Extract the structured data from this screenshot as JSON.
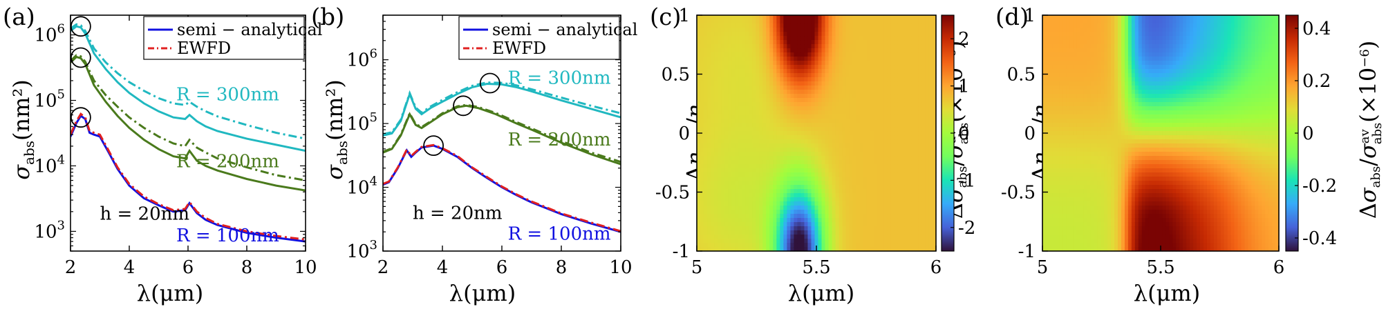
{
  "chart_data": [
    {
      "type": "line",
      "panel": "(a)",
      "xlabel": "λ(μm)",
      "ylabel_main": "σ",
      "ylabel_sub": "abs",
      "ylabel_unit": "(nm²)",
      "xlim": [
        2,
        10
      ],
      "ylim": [
        500,
        2000000
      ],
      "yscale": "log",
      "xticks": [
        2,
        4,
        6,
        8,
        10
      ],
      "xtick_labels": [
        "2",
        "4",
        "6",
        "8",
        "10"
      ],
      "ytick_labels": [
        {
          "base": "10",
          "exp": "3",
          "value": 1000
        },
        {
          "base": "10",
          "exp": "4",
          "value": 10000
        },
        {
          "base": "10",
          "exp": "5",
          "value": 100000
        },
        {
          "base": "10",
          "exp": "6",
          "value": 1000000
        }
      ],
      "legend": [
        {
          "label": "semi − analytical",
          "color": "#1010e0",
          "style": "solid"
        },
        {
          "label": "EWFD",
          "color": "#e02020",
          "style": "dashdot"
        }
      ],
      "annotations": [
        {
          "text": "R = 300nm",
          "color": "#20b8c0",
          "x": 5.6,
          "y": 100000
        },
        {
          "text": "R = 200nm",
          "color": "#4a7a1c",
          "x": 5.6,
          "y": 9500
        },
        {
          "text": "R = 100nm",
          "color": "#1010e0",
          "x": 5.6,
          "y": 700
        },
        {
          "text": "h = 20nm",
          "color": "#000000",
          "x": 3.0,
          "y": 1500
        }
      ],
      "circles": [
        {
          "x": 2.35,
          "y": 1350000
        },
        {
          "x": 2.35,
          "y": 450000
        },
        {
          "x": 2.35,
          "y": 55000
        }
      ],
      "series": [
        {
          "name": "R = 300nm semi-analytical",
          "color": "#20b8c0",
          "style": "solid",
          "x": [
            2,
            2.2,
            2.35,
            2.5,
            2.8,
            3.2,
            3.6,
            4,
            4.5,
            5,
            5.5,
            5.9,
            6.05,
            6.3,
            6.6,
            7,
            8,
            9,
            10
          ],
          "y": [
            1150000,
            1350000,
            1300000,
            1050000,
            520000,
            300000,
            190000,
            130000,
            90000,
            68000,
            55000,
            52000,
            60000,
            48000,
            40000,
            34000,
            26000,
            21000,
            17000
          ]
        },
        {
          "name": "R = 300nm EWFD",
          "color": "#20b8c0",
          "style": "dashdot",
          "x": [
            2,
            2.2,
            2.35,
            2.5,
            2.8,
            3.2,
            3.6,
            4,
            4.5,
            5,
            5.5,
            5.9,
            6.05,
            6.3,
            6.6,
            7,
            8,
            9,
            10
          ],
          "y": [
            1250000,
            1450000,
            1400000,
            1150000,
            620000,
            380000,
            260000,
            190000,
            140000,
            108000,
            90000,
            85000,
            95000,
            80000,
            68000,
            57000,
            42000,
            32000,
            26000
          ]
        },
        {
          "name": "R = 200nm semi-analytical",
          "color": "#4a7a1c",
          "style": "solid",
          "x": [
            2,
            2.2,
            2.35,
            2.5,
            2.8,
            3.2,
            3.6,
            4,
            4.5,
            5,
            5.5,
            5.9,
            6.05,
            6.3,
            6.6,
            7,
            8,
            9,
            10
          ],
          "y": [
            380000,
            460000,
            440000,
            360000,
            170000,
            95000,
            58000,
            38000,
            25000,
            18000,
            14000,
            13000,
            17000,
            12000,
            10000,
            8500,
            6300,
            5000,
            4200
          ]
        },
        {
          "name": "R = 200nm EWFD",
          "color": "#4a7a1c",
          "style": "dashdot",
          "x": [
            2,
            2.2,
            2.35,
            2.5,
            2.8,
            3.2,
            3.6,
            4,
            4.5,
            5,
            5.5,
            5.9,
            6.05,
            6.3,
            6.6,
            7,
            8,
            9,
            10
          ],
          "y": [
            400000,
            490000,
            470000,
            390000,
            200000,
            120000,
            80000,
            55000,
            38000,
            28000,
            22000,
            20000,
            25000,
            19000,
            16000,
            13000,
            9500,
            7200,
            6000
          ]
        },
        {
          "name": "R = 100nm semi-analytical",
          "color": "#1010e0",
          "style": "solid",
          "x": [
            2,
            2.2,
            2.35,
            2.5,
            2.65,
            2.8,
            3,
            3.3,
            3.6,
            4,
            4.5,
            5,
            5.5,
            5.9,
            6.05,
            6.3,
            6.6,
            7,
            8,
            9,
            10
          ],
          "y": [
            28000,
            45000,
            58000,
            52000,
            32000,
            30000,
            28000,
            16000,
            9000,
            5000,
            3200,
            2500,
            2000,
            2100,
            2700,
            1900,
            1500,
            1250,
            950,
            800,
            700
          ]
        },
        {
          "name": "R = 100nm EWFD",
          "color": "#e02020",
          "style": "dashdot",
          "x": [
            2,
            2.2,
            2.35,
            2.5,
            2.65,
            2.8,
            3,
            3.3,
            3.6,
            4,
            4.5,
            5,
            5.5,
            5.9,
            6.05,
            6.3,
            6.6,
            7,
            8,
            9,
            10
          ],
          "y": [
            30000,
            48000,
            62000,
            55000,
            34000,
            32000,
            30000,
            17000,
            9500,
            5300,
            3400,
            2600,
            2100,
            2200,
            2800,
            2000,
            1600,
            1300,
            1000,
            850,
            750
          ]
        }
      ]
    },
    {
      "type": "line",
      "panel": "(b)",
      "xlabel": "λ(μm)",
      "ylabel_main": "σ",
      "ylabel_sub": "abs",
      "ylabel_unit": "(nm²)",
      "xlim": [
        2,
        10
      ],
      "ylim": [
        1000,
        5000000
      ],
      "yscale": "log",
      "xticks": [
        2,
        4,
        6,
        8,
        10
      ],
      "xtick_labels": [
        "2",
        "4",
        "6",
        "8",
        "10"
      ],
      "ytick_labels": [
        {
          "base": "10",
          "exp": "3",
          "value": 1000
        },
        {
          "base": "10",
          "exp": "4",
          "value": 10000
        },
        {
          "base": "10",
          "exp": "5",
          "value": 100000
        },
        {
          "base": "10",
          "exp": "6",
          "value": 1000000
        }
      ],
      "legend": [
        {
          "label": "semi − analytical",
          "color": "#1010e0",
          "style": "solid"
        },
        {
          "label": "EWFD",
          "color": "#e02020",
          "style": "dashdot"
        }
      ],
      "annotations": [
        {
          "text": "R = 300nm",
          "color": "#20b8c0",
          "x": 6.2,
          "y": 420000
        },
        {
          "text": "R = 200nm",
          "color": "#4a7a1c",
          "x": 6.2,
          "y": 45000
        },
        {
          "text": "R = 100nm",
          "color": "#1010e0",
          "x": 6.2,
          "y": 1500
        },
        {
          "text": "h = 20nm",
          "color": "#000000",
          "x": 3.0,
          "y": 3200
        }
      ],
      "circles": [
        {
          "x": 5.6,
          "y": 430000
        },
        {
          "x": 4.7,
          "y": 190000
        },
        {
          "x": 3.7,
          "y": 45000
        }
      ],
      "series": [
        {
          "name": "R = 300nm semi-analytical",
          "color": "#20b8c0",
          "style": "solid",
          "x": [
            2,
            2.3,
            2.6,
            2.9,
            3.1,
            3.3,
            3.6,
            4,
            4.5,
            5,
            5.5,
            6,
            6.5,
            7,
            8,
            9,
            10
          ],
          "y": [
            65000,
            70000,
            110000,
            290000,
            170000,
            140000,
            175000,
            220000,
            290000,
            370000,
            420000,
            410000,
            370000,
            320000,
            230000,
            170000,
            125000
          ]
        },
        {
          "name": "R = 300nm EWFD",
          "color": "#20b8c0",
          "style": "dashdot",
          "x": [
            2,
            2.3,
            2.6,
            2.9,
            3.1,
            3.3,
            3.6,
            4,
            4.5,
            5,
            5.5,
            6,
            6.5,
            7,
            8,
            9,
            10
          ],
          "y": [
            68000,
            73000,
            115000,
            300000,
            178000,
            148000,
            185000,
            235000,
            310000,
            390000,
            440000,
            435000,
            395000,
            345000,
            255000,
            190000,
            145000
          ]
        },
        {
          "name": "R = 200nm semi-analytical",
          "color": "#4a7a1c",
          "style": "solid",
          "x": [
            2,
            2.3,
            2.6,
            2.9,
            3.1,
            3.3,
            3.6,
            4,
            4.5,
            4.8,
            5.2,
            5.8,
            6.5,
            7,
            8,
            9,
            10
          ],
          "y": [
            35000,
            40000,
            65000,
            140000,
            95000,
            85000,
            105000,
            140000,
            180000,
            190000,
            175000,
            140000,
            100000,
            80000,
            50000,
            33000,
            23000
          ]
        },
        {
          "name": "R = 200nm EWFD",
          "color": "#4a7a1c",
          "style": "dashdot",
          "x": [
            2,
            2.3,
            2.6,
            2.9,
            3.1,
            3.3,
            3.6,
            4,
            4.5,
            4.8,
            5.2,
            5.8,
            6.5,
            7,
            8,
            9,
            10
          ],
          "y": [
            36000,
            41000,
            67000,
            145000,
            98000,
            88000,
            108000,
            145000,
            186000,
            196000,
            182000,
            146000,
            105000,
            84000,
            53000,
            35000,
            25000
          ]
        },
        {
          "name": "R = 100nm semi-analytical",
          "color": "#1010e0",
          "style": "solid",
          "x": [
            2,
            2.2,
            2.5,
            2.8,
            2.95,
            3.1,
            3.3,
            3.7,
            4,
            4.5,
            5,
            5.5,
            6,
            6.5,
            7,
            8,
            9,
            10
          ],
          "y": [
            11000,
            12000,
            20000,
            38000,
            30000,
            35000,
            42000,
            45000,
            40000,
            30000,
            20000,
            14000,
            10000,
            7500,
            5800,
            3800,
            2700,
            2000
          ]
        },
        {
          "name": "R = 100nm EWFD",
          "color": "#e02020",
          "style": "dashdot",
          "x": [
            2,
            2.2,
            2.5,
            2.8,
            2.95,
            3.1,
            3.3,
            3.7,
            4,
            4.5,
            5,
            5.5,
            6,
            6.5,
            7,
            8,
            9,
            10
          ],
          "y": [
            11300,
            12300,
            20500,
            39000,
            31000,
            36000,
            43000,
            46000,
            41000,
            31000,
            20500,
            14500,
            10300,
            7700,
            6000,
            3900,
            2800,
            2050
          ]
        }
      ]
    },
    {
      "type": "heatmap",
      "panel": "(c)",
      "xlabel": "λ(μm)",
      "ylabel": "Δn_mol/n_mol",
      "xlim": [
        5,
        6
      ],
      "ylim": [
        -1,
        1
      ],
      "xtick_labels": [
        "5",
        "5.5",
        "6"
      ],
      "xticks": [
        5,
        5.5,
        6
      ],
      "ytick_labels": [
        "-1",
        "-0.5",
        "0",
        "0.5",
        "1"
      ],
      "yticks": [
        -1,
        -0.5,
        0,
        0.5,
        1
      ],
      "colorbar_label": "Δσ_abs/σ_abs^av(×10⁻⁶)",
      "colorbar_range": [
        -2.5,
        2.5
      ],
      "colorbar_ticks": [
        -2,
        -1,
        0,
        1,
        2
      ],
      "colorbar_tick_labels": [
        "-2",
        "-1",
        "0",
        "1",
        "2"
      ],
      "background_value": 0.75,
      "features": [
        {
          "kind": "peak",
          "x": 5.43,
          "y": 1.0,
          "sx": 0.07,
          "sy": 0.38,
          "amp": 2.9
        },
        {
          "kind": "trough",
          "x": 5.43,
          "y": -1.0,
          "sx": 0.07,
          "sy": 0.38,
          "amp": -3.3
        },
        {
          "kind": "halo",
          "x": 5.2,
          "y": -0.6,
          "sx": 0.2,
          "sy": 0.5,
          "amp": -0.4
        },
        {
          "kind": "halo",
          "x": 5.2,
          "y": 0.6,
          "sx": 0.2,
          "sy": 0.5,
          "amp": -0.25
        }
      ]
    },
    {
      "type": "heatmap",
      "panel": "(d)",
      "xlabel": "λ(μm)",
      "ylabel": "Δn_mol/n_mol",
      "xlim": [
        5,
        6
      ],
      "ylim": [
        -1,
        1
      ],
      "xtick_labels": [
        "5",
        "5.5",
        "6"
      ],
      "xticks": [
        5,
        5.5,
        6
      ],
      "ytick_labels": [
        "-1",
        "-0.5",
        "0",
        "0.5",
        "1"
      ],
      "yticks": [
        -1,
        -0.5,
        0,
        0.5,
        1
      ],
      "colorbar_label": "Δσ_abs/σ_abs^av(×10⁻⁶)",
      "colorbar_range": [
        -0.45,
        0.45
      ],
      "colorbar_ticks": [
        -0.4,
        -0.2,
        0,
        0.2,
        0.4
      ],
      "colorbar_tick_labels": [
        "-0.4",
        "-0.2",
        "0",
        "0.2",
        "0.4"
      ],
      "description_values": {
        "upper_left": 0.18,
        "upper_right": -0.3,
        "lower_right": 0.42,
        "lower_left": 0.05
      }
    }
  ]
}
